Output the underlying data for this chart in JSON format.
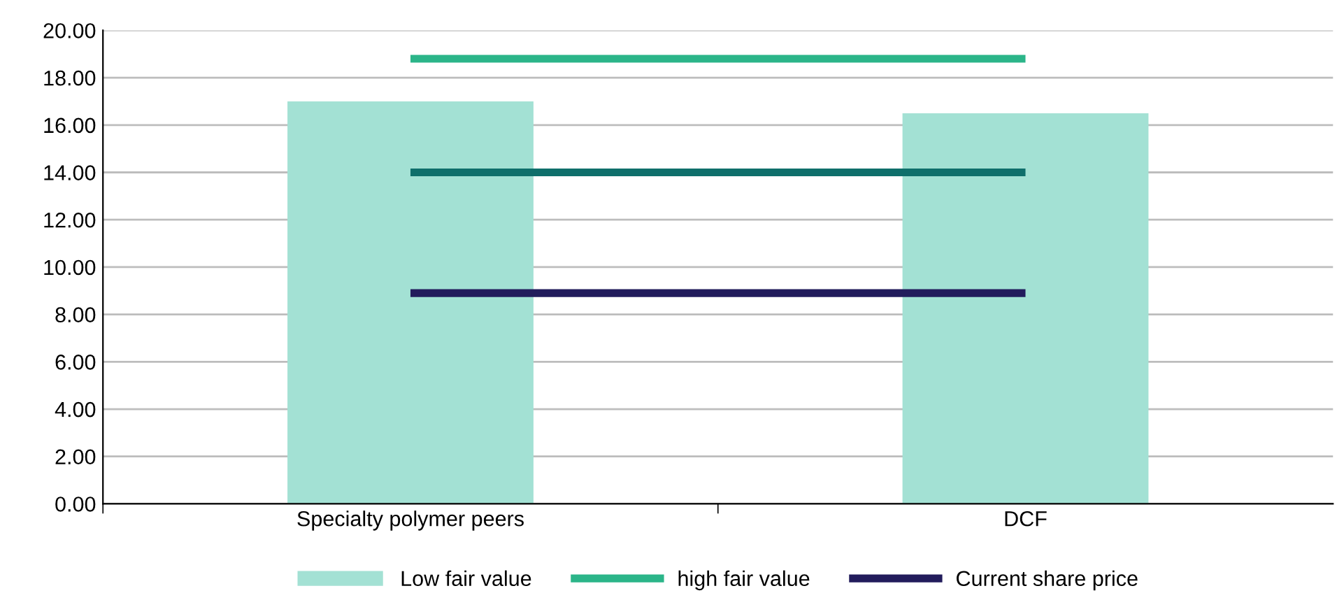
{
  "chart_data": {
    "type": "bar",
    "categories": [
      "Specialty polymer peers",
      "DCF"
    ],
    "series": [
      {
        "name": "Low fair value",
        "color": "#a3e1d4",
        "values": [
          17.0,
          16.5
        ]
      },
      {
        "name": "high fair value",
        "type": "line",
        "color": "#2bb589",
        "values": [
          18.8,
          18.8
        ]
      },
      {
        "type": "line",
        "color": "#0f6f6b",
        "values": [
          14.0,
          14.0
        ]
      },
      {
        "name": "Current share price",
        "type": "line",
        "color": "#221c5c",
        "values": [
          8.9,
          8.9
        ]
      }
    ],
    "ylim": [
      0,
      20
    ],
    "yticks": [
      {
        "value": 0,
        "label": "0.00"
      },
      {
        "value": 2,
        "label": "2.00"
      },
      {
        "value": 4,
        "label": "4.00"
      },
      {
        "value": 6,
        "label": "6.00"
      },
      {
        "value": 8,
        "label": "8.00"
      },
      {
        "value": 10,
        "label": "10.00"
      },
      {
        "value": 12,
        "label": "12.00"
      },
      {
        "value": 14,
        "label": "14.00"
      },
      {
        "value": 16,
        "label": "16.00"
      },
      {
        "value": 18,
        "label": "18.00"
      },
      {
        "value": 20,
        "label": "20.00"
      }
    ],
    "grid": "y",
    "legend": "bottom",
    "marker": "none",
    "line_style": "solid"
  }
}
